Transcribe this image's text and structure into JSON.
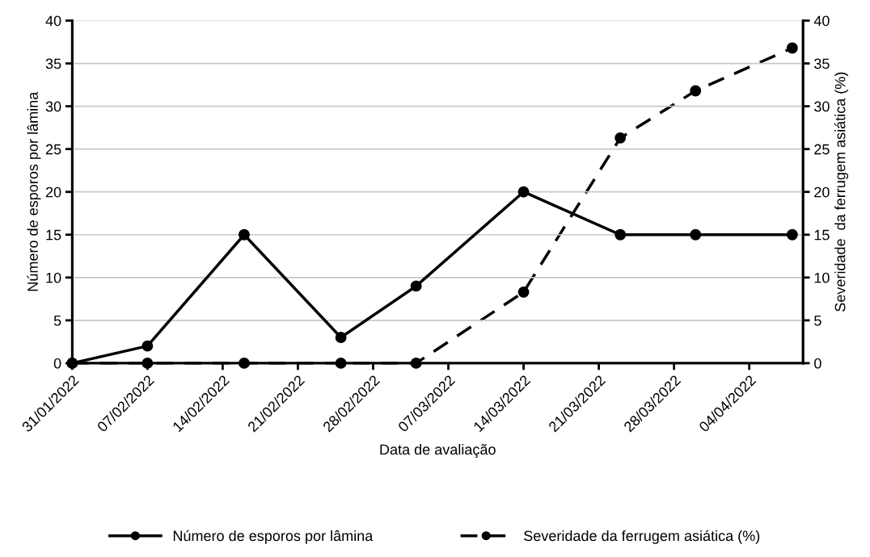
{
  "chart_data": {
    "type": "line",
    "xlabel": "Data de avaliação",
    "ylabel": "Número de esporos por lâmina",
    "y2label": "Severidade  da ferrugem asiática (%)",
    "x": [
      "2022-01-31",
      "2022-02-07",
      "2022-02-16",
      "2022-02-25",
      "2022-03-04",
      "2022-03-14",
      "2022-03-23",
      "2022-03-30",
      "2022-04-08"
    ],
    "series": [
      {
        "name": "Número de esporos por lâmina",
        "color": "#000000",
        "line_style": "solid",
        "values": [
          0,
          2,
          15,
          3,
          9,
          20,
          15,
          15,
          15
        ]
      },
      {
        "name": "Severidade da ferrugem asiática (%)",
        "color": "#000000",
        "line_style": "dashed",
        "axis": "y2",
        "values": [
          0,
          0,
          0,
          0,
          0,
          8.3,
          26.3,
          31.8,
          36.8
        ]
      }
    ],
    "xlim": [
      "2022-01-31",
      "2022-04-09"
    ],
    "xticks": [
      {
        "value": "2022-01-31",
        "label": "31/01/2022"
      },
      {
        "value": "2022-02-07",
        "label": "07/02/2022"
      },
      {
        "value": "2022-02-14",
        "label": "14/02/2022"
      },
      {
        "value": "2022-02-21",
        "label": "21/02/2022"
      },
      {
        "value": "2022-02-28",
        "label": "28/02/2022"
      },
      {
        "value": "2022-03-07",
        "label": "07/03/2022"
      },
      {
        "value": "2022-03-14",
        "label": "14/03/2022"
      },
      {
        "value": "2022-03-21",
        "label": "21/03/2022"
      },
      {
        "value": "2022-03-28",
        "label": "28/03/2022"
      },
      {
        "value": "2022-04-04",
        "label": "04/04/2022"
      }
    ],
    "ylim": [
      0,
      40
    ],
    "yticks": [
      0,
      5,
      10,
      15,
      20,
      25,
      30,
      35,
      40
    ],
    "y2lim": [
      0,
      40
    ],
    "y2ticks": [
      0,
      5,
      10,
      15,
      20,
      25,
      30,
      35,
      40
    ],
    "grid": "y",
    "legend": "bottom",
    "marker": "circle"
  }
}
